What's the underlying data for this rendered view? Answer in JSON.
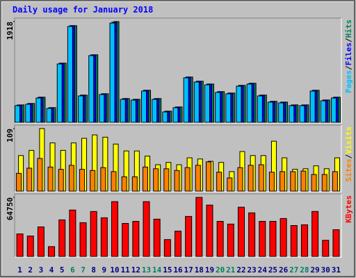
{
  "title": "Daily usage for January 2018",
  "chart_data": [
    {
      "type": "bar",
      "legend_separator": "/",
      "series": [
        {
          "name": "Pages",
          "color": "#00c0ff",
          "values": [
            317,
            344,
            463,
            265,
            1111,
            1825,
            503,
            1270,
            529,
            1890,
            437,
            423,
            595,
            437,
            198,
            278,
            847,
            767,
            714,
            569,
            542,
            688,
            728,
            503,
            384,
            370,
            317,
            317,
            595,
            410,
            463
          ]
        },
        {
          "name": "Files",
          "color": "#0000ff",
          "values": [
            330,
            358,
            478,
            279,
            1126,
            1840,
            518,
            1285,
            544,
            1905,
            452,
            438,
            610,
            452,
            212,
            292,
            862,
            782,
            729,
            584,
            557,
            703,
            743,
            518,
            399,
            385,
            331,
            331,
            610,
            425,
            478
          ]
        },
        {
          "name": "Hits",
          "color": "#00805c",
          "values": [
            332,
            359,
            478,
            280,
            1126,
            1840,
            518,
            1285,
            544,
            1918,
            452,
            438,
            610,
            452,
            213,
            293,
            862,
            782,
            729,
            584,
            557,
            703,
            743,
            518,
            399,
            385,
            332,
            332,
            610,
            425,
            478
          ]
        }
      ],
      "ylim": [
        0,
        1918
      ],
      "yticks": [
        1918
      ]
    },
    {
      "type": "bar",
      "legend_separator": "/",
      "series": [
        {
          "name": "Sites",
          "color": "#ff8000",
          "values": [
            31,
            40,
            57,
            42,
            38,
            45,
            38,
            36,
            41,
            34,
            25,
            25,
            42,
            39,
            39,
            36,
            41,
            45,
            51,
            33,
            23,
            41,
            45,
            46,
            33,
            34,
            34,
            35,
            29,
            29,
            34
          ]
        },
        {
          "name": "Visits",
          "color": "#ffff00",
          "values": [
            62,
            71,
            109,
            84,
            71,
            84,
            92,
            98,
            94,
            82,
            70,
            70,
            61,
            46,
            50,
            46,
            58,
            56,
            52,
            50,
            34,
            69,
            62,
            62,
            87,
            58,
            38,
            39,
            44,
            39,
            58
          ]
        }
      ],
      "ylim": [
        0,
        109
      ],
      "yticks": [
        109
      ]
    },
    {
      "type": "bar",
      "categories": [
        "1",
        "2",
        "3",
        "4",
        "5",
        "6",
        "7",
        "8",
        "9",
        "10",
        "11",
        "12",
        "13",
        "14",
        "15",
        "16",
        "17",
        "18",
        "19",
        "20",
        "21",
        "22",
        "23",
        "24",
        "25",
        "26",
        "27",
        "28",
        "29",
        "30",
        "31"
      ],
      "category_colors": [
        "#000080",
        "#000080",
        "#000080",
        "#000080",
        "#000080",
        "#00805c",
        "#00805c",
        "#000080",
        "#000080",
        "#000080",
        "#000080",
        "#000080",
        "#00805c",
        "#00805c",
        "#000080",
        "#000080",
        "#000080",
        "#000080",
        "#000080",
        "#00805c",
        "#00805c",
        "#000080",
        "#000080",
        "#000080",
        "#000080",
        "#000080",
        "#00805c",
        "#00805c",
        "#000080",
        "#000080",
        "#000080"
      ],
      "series": [
        {
          "name": "KBytes",
          "color": "#ff0000",
          "values": [
            24700,
            22400,
            32400,
            10800,
            40100,
            50900,
            37000,
            49300,
            42400,
            60100,
            36200,
            38500,
            60100,
            40900,
            18500,
            27800,
            43900,
            64750,
            56300,
            38500,
            35500,
            54000,
            47800,
            38500,
            38500,
            41600,
            33900,
            34700,
            49300,
            17700,
            29300
          ]
        }
      ],
      "ylim": [
        0,
        64750
      ],
      "yticks": [
        64750
      ]
    }
  ]
}
